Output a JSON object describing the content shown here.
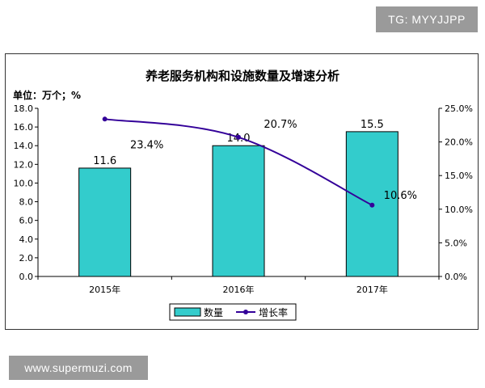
{
  "watermarks": {
    "tag": "TG: MYYJJPP",
    "url": "www.supermuzi.com"
  },
  "chart_data": {
    "type": "bar",
    "title": "养老服务机构和设施数量及增速分析",
    "unit_label": "单位：万个；%",
    "categories": [
      "2015年",
      "2016年",
      "2017年"
    ],
    "series": [
      {
        "name": "数量",
        "type": "bar",
        "axis": "left",
        "values": [
          11.6,
          14.0,
          15.5
        ],
        "data_labels": [
          "11.6",
          "14.0",
          "15.5"
        ],
        "color": "#33cccc"
      },
      {
        "name": "增长率",
        "type": "line",
        "axis": "right",
        "values": [
          23.4,
          20.7,
          10.6
        ],
        "data_labels": [
          "23.4%",
          "20.7%",
          "10.6%"
        ],
        "color": "#330099"
      }
    ],
    "y_left": {
      "min": 0,
      "max": 18,
      "step": 2,
      "ticks": [
        "0.0",
        "2.0",
        "4.0",
        "6.0",
        "8.0",
        "10.0",
        "12.0",
        "14.0",
        "16.0",
        "18.0"
      ]
    },
    "y_right": {
      "min": 0,
      "max": 25,
      "step": 5,
      "ticks": [
        "0.0%",
        "5.0%",
        "10.0%",
        "15.0%",
        "20.0%",
        "25.0%"
      ]
    },
    "grid": false,
    "legend_position": "bottom"
  }
}
